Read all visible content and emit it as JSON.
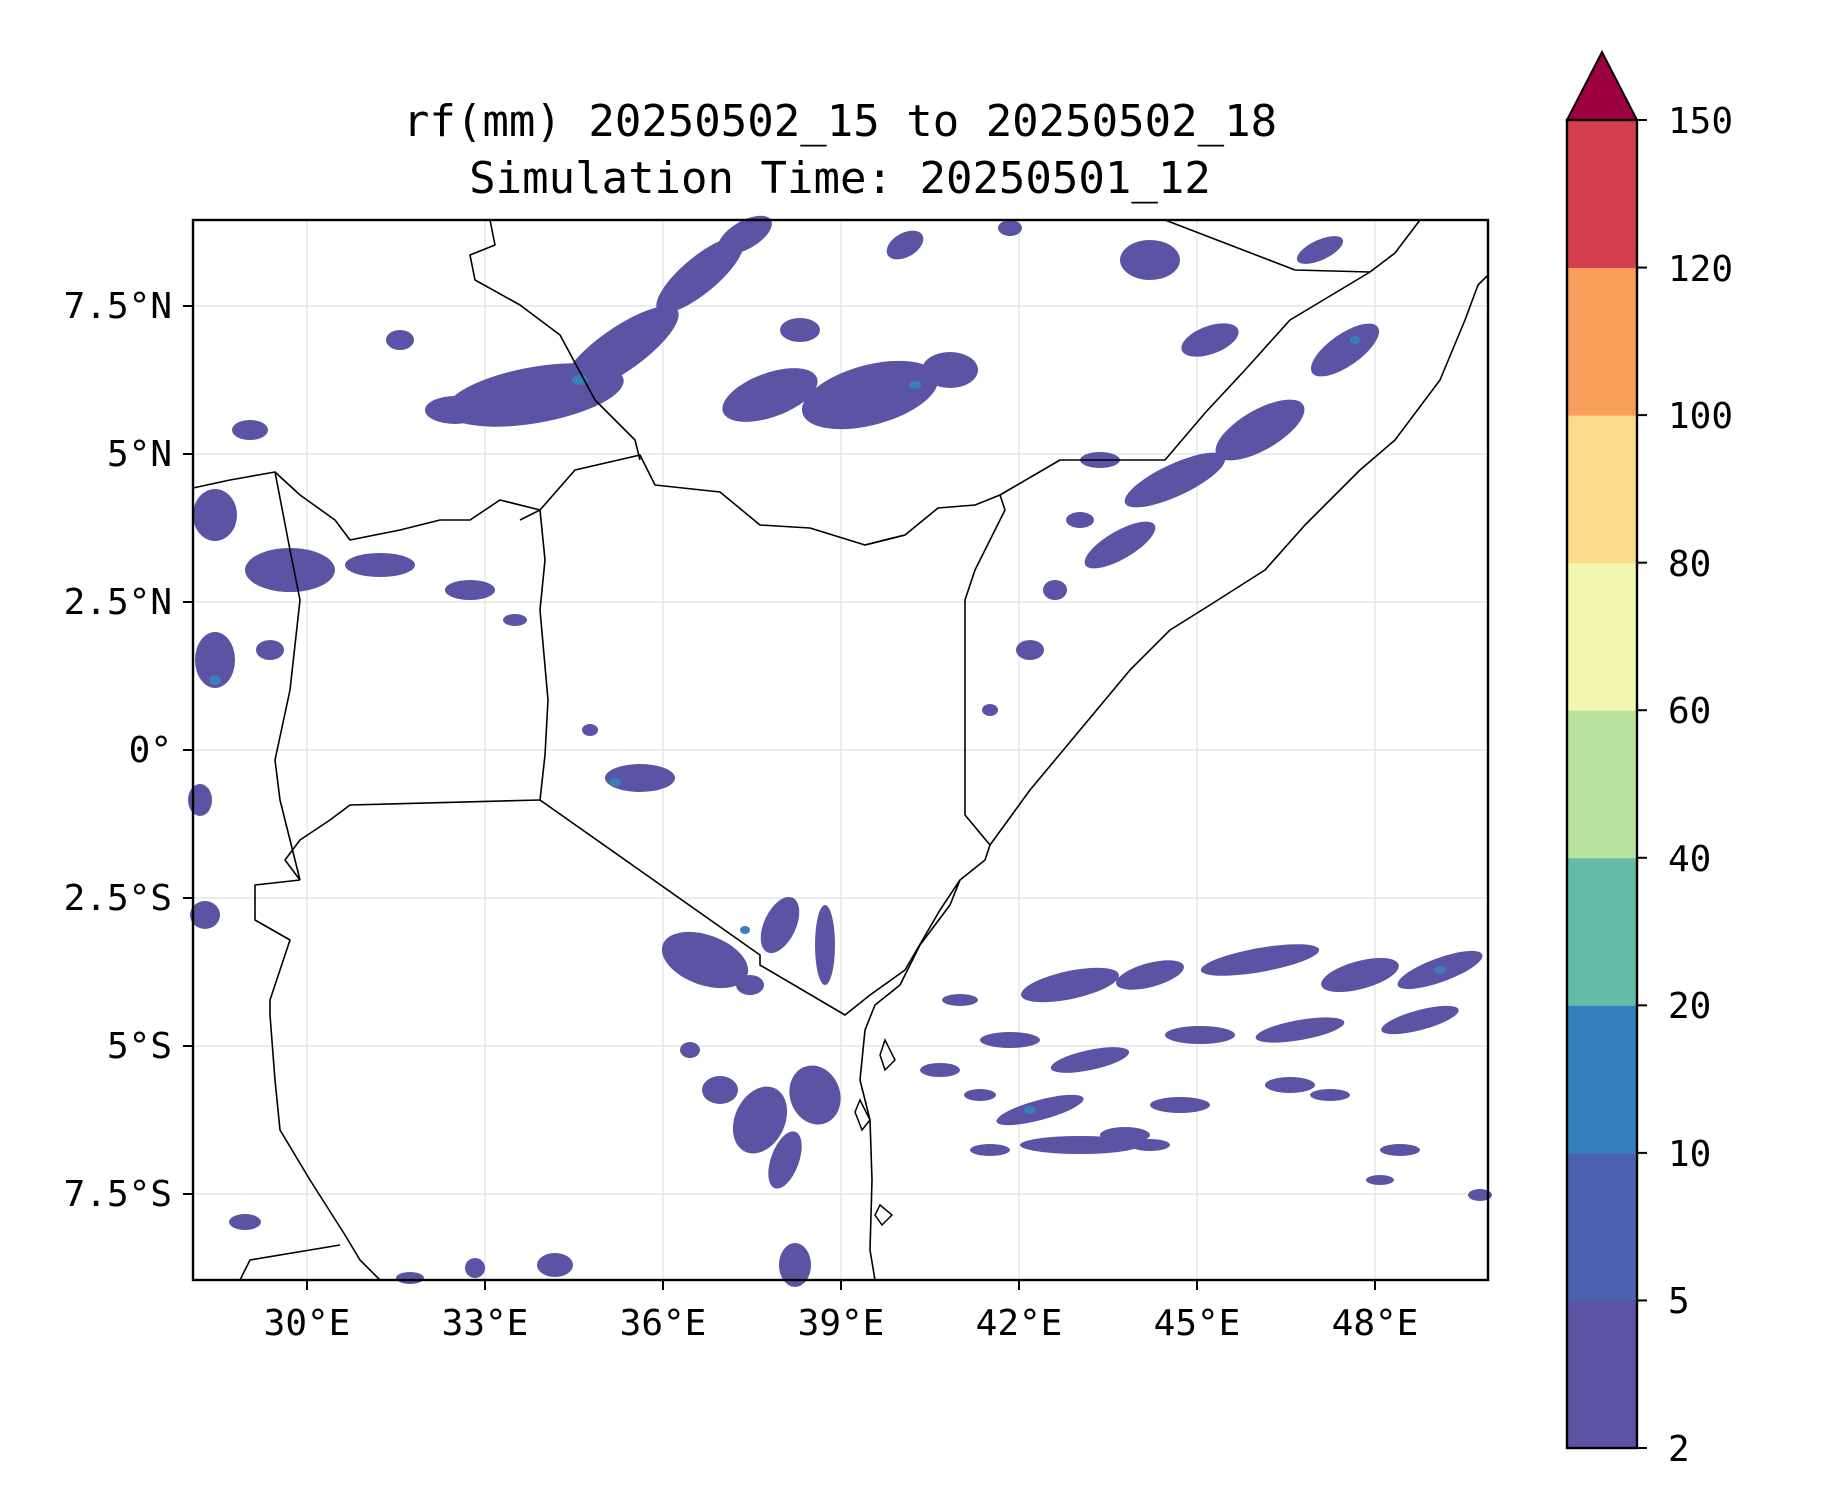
{
  "map": {
    "title_line1": "rf(mm) 20250502_15 to 20250502_18",
    "title_line2": "Simulation Time: 20250501_12",
    "lon_ticks": [
      "30°E",
      "33°E",
      "36°E",
      "39°E",
      "42°E",
      "45°E",
      "48°E"
    ],
    "lat_ticks": [
      "7.5°N",
      "5°N",
      "2.5°N",
      "0°",
      "2.5°S",
      "5°S",
      "7.5°S"
    ],
    "extent_lon": [
      28.1,
      49.9
    ],
    "extent_lat": [
      -8.9,
      8.9
    ],
    "precip_color": "#5b54a4",
    "precip_color_heavy": "#3a7fb9",
    "border_color": "#000000",
    "grid_color": "#e6e6e6"
  },
  "colorbar": {
    "labels": [
      "150",
      "120",
      "100",
      "80",
      "60",
      "40",
      "20",
      "10",
      "5",
      "2"
    ],
    "levels": [
      2,
      5,
      10,
      20,
      40,
      60,
      80,
      100,
      120,
      150
    ],
    "colors": [
      "#5c52a3",
      "#4b62ae",
      "#3580ba",
      "#64bca7",
      "#bbe3a0",
      "#f1f8ad",
      "#fbdb8c",
      "#f89e5a",
      "#d43f4e"
    ],
    "extend_color": "#9e0142"
  }
}
